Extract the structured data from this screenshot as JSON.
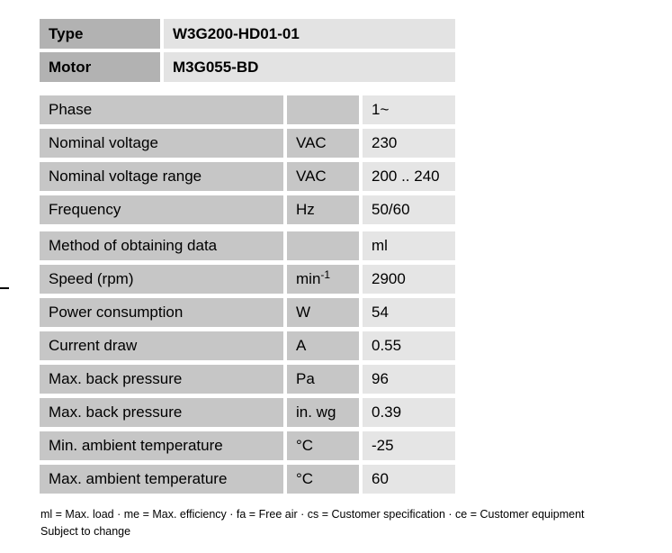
{
  "colors": {
    "header_label_bg": "#b2b2b2",
    "header_value_bg": "#e3e3e3",
    "spec_label_bg": "#c6c6c6",
    "spec_value_bg": "#e5e5e5",
    "text": "#000000",
    "page_bg": "#ffffff"
  },
  "header_table": {
    "rows": [
      {
        "label": "Type",
        "value": "W3G200-HD01-01"
      },
      {
        "label": "Motor",
        "value": "M3G055-BD"
      }
    ]
  },
  "spec_table": {
    "sections": [
      {
        "rows": [
          {
            "label": "Phase",
            "unit": "",
            "value": "1~"
          },
          {
            "label": "Nominal voltage",
            "unit": "VAC",
            "value": "230"
          },
          {
            "label": "Nominal voltage range",
            "unit": "VAC",
            "value": "200 .. 240"
          },
          {
            "label": "Frequency",
            "unit": "Hz",
            "value": "50/60"
          }
        ]
      },
      {
        "rows": [
          {
            "label": "Method of obtaining data",
            "unit": "",
            "value": "ml"
          },
          {
            "label": "Speed (rpm)",
            "unit": "min",
            "unit_sup": "-1",
            "value": "2900"
          },
          {
            "label": "Power consumption",
            "unit": "W",
            "value": "54"
          },
          {
            "label": "Current draw",
            "unit": "A",
            "value": "0.55"
          },
          {
            "label": "Max. back pressure",
            "unit": "Pa",
            "value": "96"
          },
          {
            "label": "Max. back pressure",
            "unit": "in. wg",
            "value": "0.39"
          },
          {
            "label": "Min. ambient temperature",
            "unit": "°C",
            "value": "-25"
          },
          {
            "label": "Max. ambient temperature",
            "unit": "°C",
            "value": "60"
          }
        ]
      }
    ]
  },
  "footer": {
    "legend": "ml = Max. load · me = Max. efficiency · fa = Free air · cs = Customer specification · ce = Customer equipment",
    "note": "Subject to change"
  }
}
